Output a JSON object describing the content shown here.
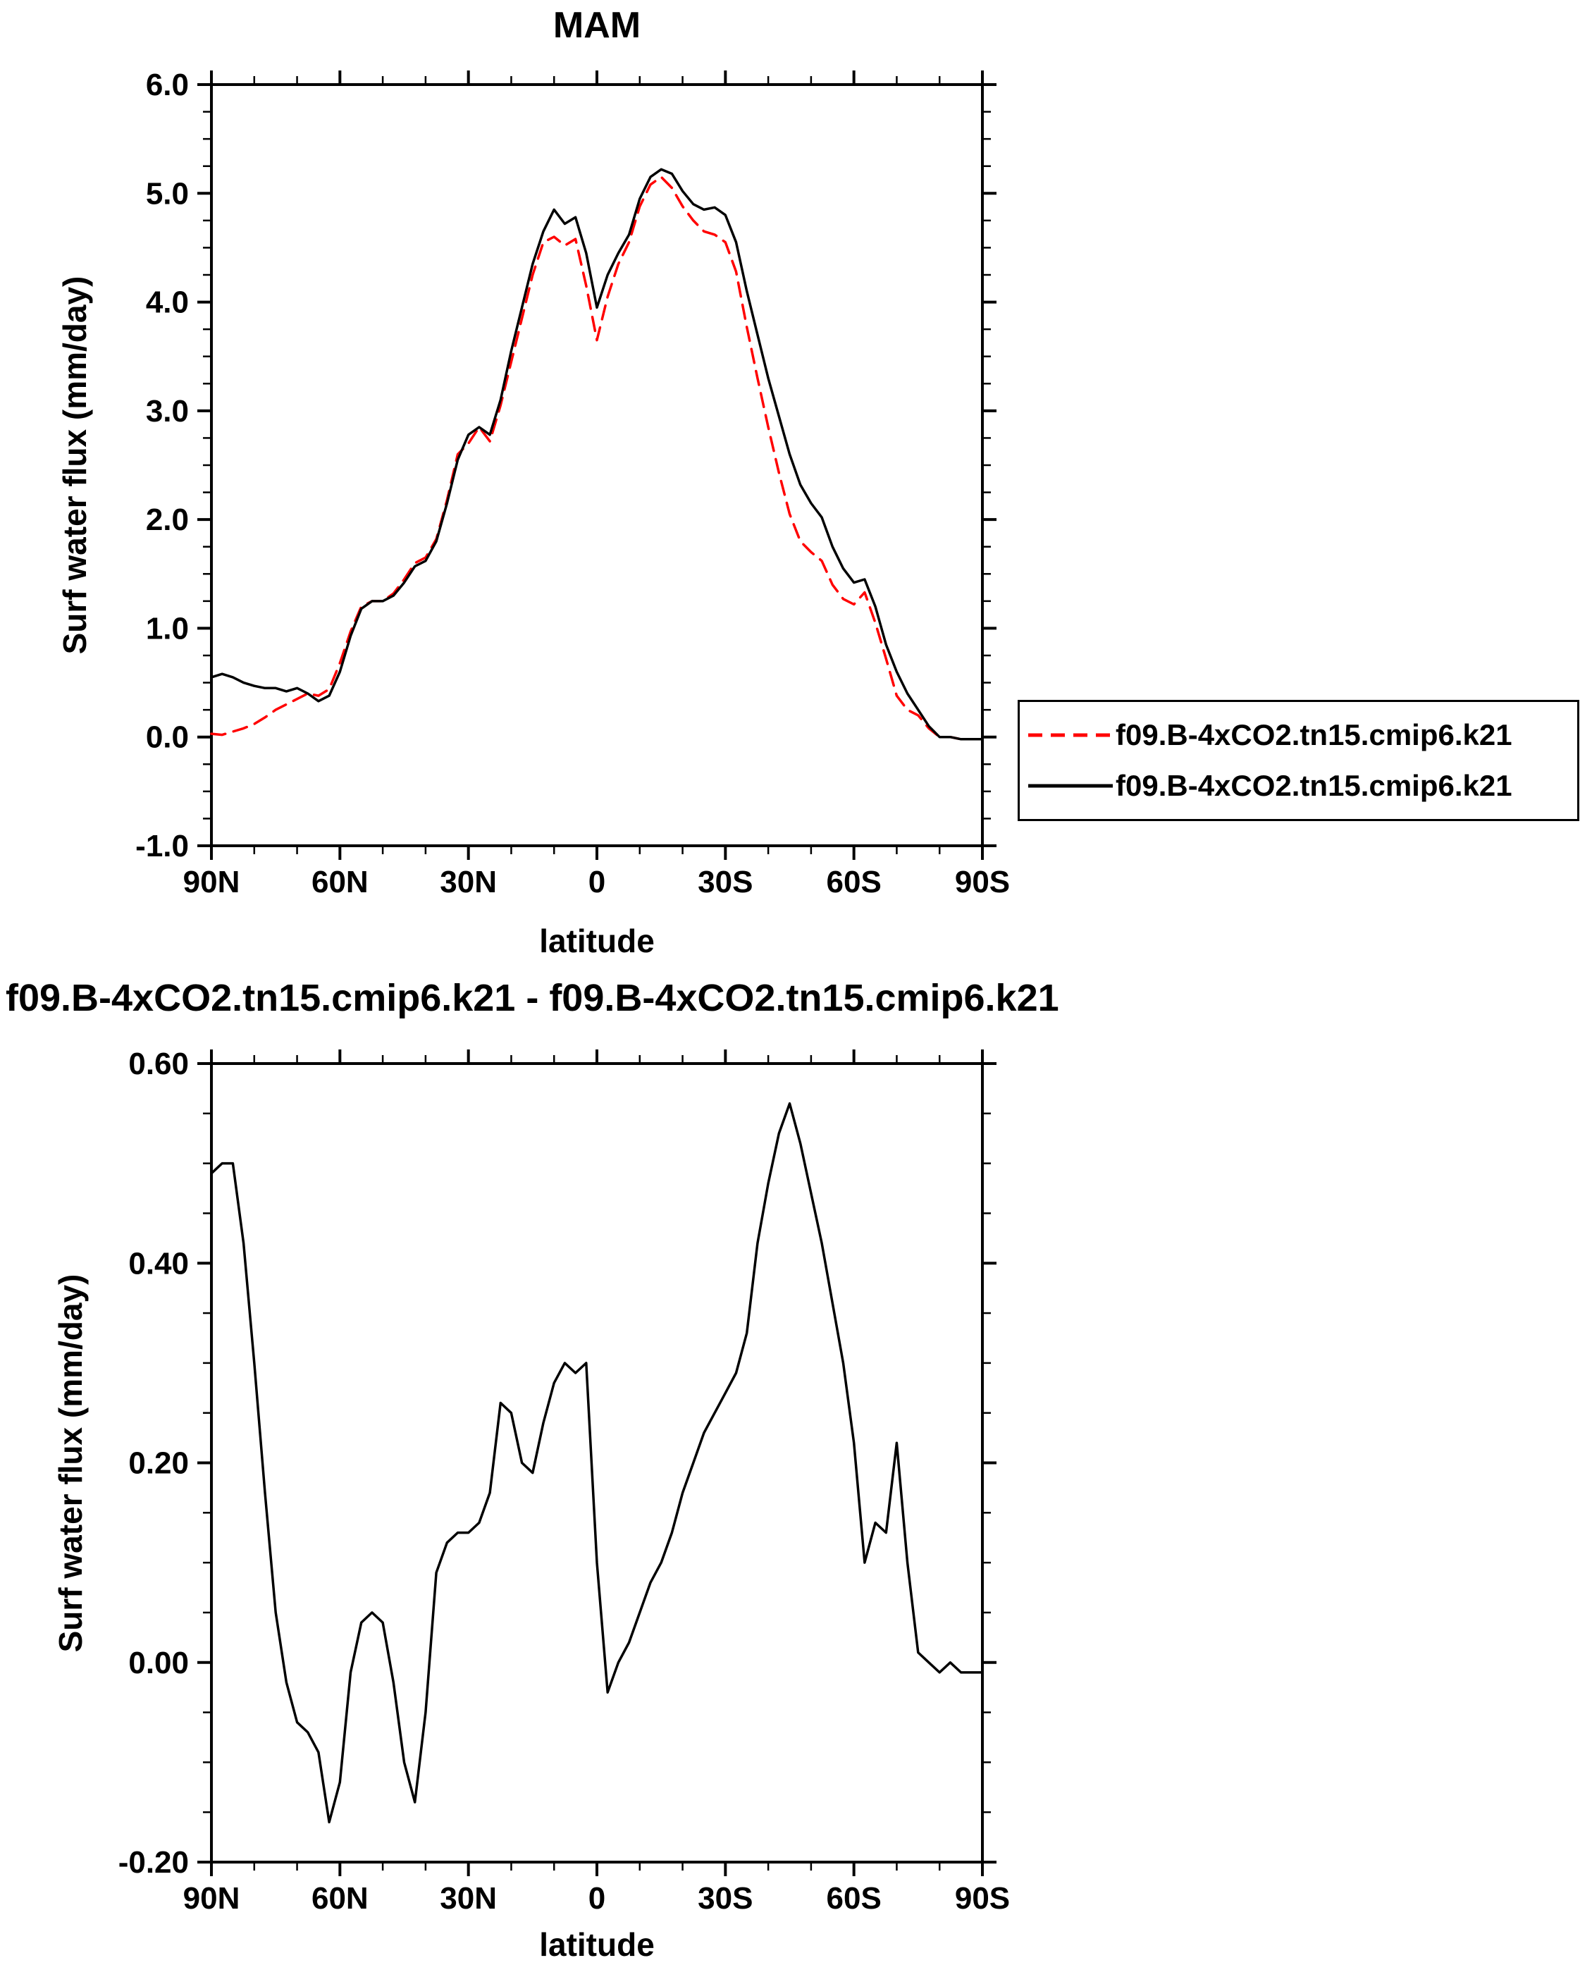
{
  "chart_data": [
    {
      "type": "line",
      "title": "MAM",
      "xlabel": "latitude",
      "ylabel": "Surf water flux (mm/day)",
      "xlim": [
        90,
        -90
      ],
      "ylim": [
        -1.0,
        6.0
      ],
      "grid": false,
      "legend_position": "right-outside",
      "xticks": {
        "values": [
          90,
          60,
          30,
          0,
          -30,
          -60,
          -90
        ],
        "labels": [
          "90N",
          "60N",
          "30N",
          "0",
          "30S",
          "60S",
          "90S"
        ],
        "minor_step": 10
      },
      "yticks": {
        "values": [
          -1.0,
          0.0,
          1.0,
          2.0,
          3.0,
          4.0,
          5.0,
          6.0
        ],
        "labels": [
          "-1.0",
          "0.0",
          "1.0",
          "2.0",
          "3.0",
          "4.0",
          "5.0",
          "6.0"
        ],
        "minor_step": 0.25
      },
      "x": [
        90,
        87.5,
        85,
        82.5,
        80,
        77.5,
        75,
        72.5,
        70,
        67.5,
        65,
        62.5,
        60,
        57.5,
        55,
        52.5,
        50,
        47.5,
        45,
        42.5,
        40,
        37.5,
        35,
        32.5,
        30,
        27.5,
        25,
        22.5,
        20,
        17.5,
        15,
        12.5,
        10,
        7.5,
        5,
        2.5,
        0,
        -2.5,
        -5,
        -7.5,
        -10,
        -12.5,
        -15,
        -17.5,
        -20,
        -22.5,
        -25,
        -27.5,
        -30,
        -32.5,
        -35,
        -37.5,
        -40,
        -42.5,
        -45,
        -47.5,
        -50,
        -52.5,
        -55,
        -57.5,
        -60,
        -62.5,
        -65,
        -67.5,
        -70,
        -72.5,
        -75,
        -77.5,
        -80,
        -82.5,
        -85,
        -87.5,
        -90
      ],
      "series": [
        {
          "name": "f09.B-4xCO2.tn15.cmip6.k21",
          "color": "#ff0000",
          "line_style": "dashed",
          "values": [
            0.03,
            0.02,
            0.05,
            0.08,
            0.12,
            0.18,
            0.25,
            0.3,
            0.35,
            0.4,
            0.38,
            0.44,
            0.68,
            0.97,
            1.2,
            1.25,
            1.25,
            1.32,
            1.45,
            1.6,
            1.65,
            1.82,
            2.18,
            2.6,
            2.7,
            2.85,
            2.72,
            3.05,
            3.45,
            3.85,
            4.25,
            4.55,
            4.6,
            4.52,
            4.58,
            4.15,
            3.65,
            4.05,
            4.35,
            4.55,
            4.88,
            5.08,
            5.15,
            5.05,
            4.88,
            4.75,
            4.65,
            4.62,
            4.55,
            4.28,
            3.77,
            3.3,
            2.85,
            2.43,
            2.05,
            1.8,
            1.7,
            1.62,
            1.4,
            1.27,
            1.22,
            1.33,
            1.05,
            0.72,
            0.38,
            0.25,
            0.2,
            0.08,
            0.0,
            0.0,
            -0.02,
            -0.02,
            -0.02
          ]
        },
        {
          "name": "f09.B-4xCO2.tn15.cmip6.k21",
          "color": "#000000",
          "line_style": "solid",
          "values": [
            0.55,
            0.58,
            0.55,
            0.5,
            0.47,
            0.45,
            0.45,
            0.42,
            0.45,
            0.4,
            0.33,
            0.38,
            0.6,
            0.93,
            1.18,
            1.25,
            1.25,
            1.3,
            1.42,
            1.57,
            1.62,
            1.8,
            2.15,
            2.55,
            2.78,
            2.85,
            2.78,
            3.1,
            3.55,
            3.95,
            4.35,
            4.65,
            4.85,
            4.72,
            4.78,
            4.45,
            3.95,
            4.25,
            4.45,
            4.62,
            4.95,
            5.15,
            5.22,
            5.18,
            5.02,
            4.9,
            4.85,
            4.87,
            4.8,
            4.55,
            4.1,
            3.7,
            3.3,
            2.95,
            2.6,
            2.32,
            2.15,
            2.02,
            1.75,
            1.55,
            1.42,
            1.45,
            1.2,
            0.85,
            0.6,
            0.4,
            0.25,
            0.1,
            0.0,
            0.0,
            -0.02,
            -0.02,
            -0.02
          ]
        }
      ]
    },
    {
      "type": "line",
      "title": "f09.B-4xCO2.tn15.cmip6.k21 - f09.B-4xCO2.tn15.cmip6.k21",
      "xlabel": "latitude",
      "ylabel": "Surf water flux (mm/day)",
      "xlim": [
        90,
        -90
      ],
      "ylim": [
        -0.2,
        0.6
      ],
      "grid": false,
      "xticks": {
        "values": [
          90,
          60,
          30,
          0,
          -30,
          -60,
          -90
        ],
        "labels": [
          "90N",
          "60N",
          "30N",
          "0",
          "30S",
          "60S",
          "90S"
        ],
        "minor_step": 10
      },
      "yticks": {
        "values": [
          -0.2,
          0.0,
          0.2,
          0.4,
          0.6
        ],
        "labels": [
          "-0.20",
          "0.00",
          "0.20",
          "0.40",
          "0.60"
        ],
        "minor_step": 0.05
      },
      "x": [
        90,
        87.5,
        85,
        82.5,
        80,
        77.5,
        75,
        72.5,
        70,
        67.5,
        65,
        62.5,
        60,
        57.5,
        55,
        52.5,
        50,
        47.5,
        45,
        42.5,
        40,
        37.5,
        35,
        32.5,
        30,
        27.5,
        25,
        22.5,
        20,
        17.5,
        15,
        12.5,
        10,
        7.5,
        5,
        2.5,
        0,
        -2.5,
        -5,
        -7.5,
        -10,
        -12.5,
        -15,
        -17.5,
        -20,
        -22.5,
        -25,
        -27.5,
        -30,
        -32.5,
        -35,
        -37.5,
        -40,
        -42.5,
        -45,
        -47.5,
        -50,
        -52.5,
        -55,
        -57.5,
        -60,
        -62.5,
        -65,
        -67.5,
        -70,
        -72.5,
        -75,
        -77.5,
        -80,
        -82.5,
        -85,
        -87.5,
        -90
      ],
      "series": [
        {
          "color": "#000000",
          "line_style": "solid",
          "values": [
            0.49,
            0.5,
            0.5,
            0.42,
            0.3,
            0.17,
            0.05,
            -0.02,
            -0.06,
            -0.07,
            -0.09,
            -0.16,
            -0.12,
            -0.01,
            0.04,
            0.05,
            0.04,
            -0.02,
            -0.1,
            -0.14,
            -0.05,
            0.09,
            0.12,
            0.13,
            0.13,
            0.14,
            0.17,
            0.26,
            0.25,
            0.2,
            0.19,
            0.24,
            0.28,
            0.3,
            0.29,
            0.3,
            0.1,
            -0.03,
            0.0,
            0.02,
            0.05,
            0.08,
            0.1,
            0.13,
            0.17,
            0.2,
            0.23,
            0.25,
            0.27,
            0.29,
            0.33,
            0.42,
            0.48,
            0.53,
            0.56,
            0.52,
            0.47,
            0.42,
            0.36,
            0.3,
            0.22,
            0.1,
            0.14,
            0.13,
            0.22,
            0.1,
            0.01,
            0.0,
            -0.01,
            0.0,
            -0.01,
            -0.01,
            -0.01
          ]
        }
      ]
    }
  ]
}
